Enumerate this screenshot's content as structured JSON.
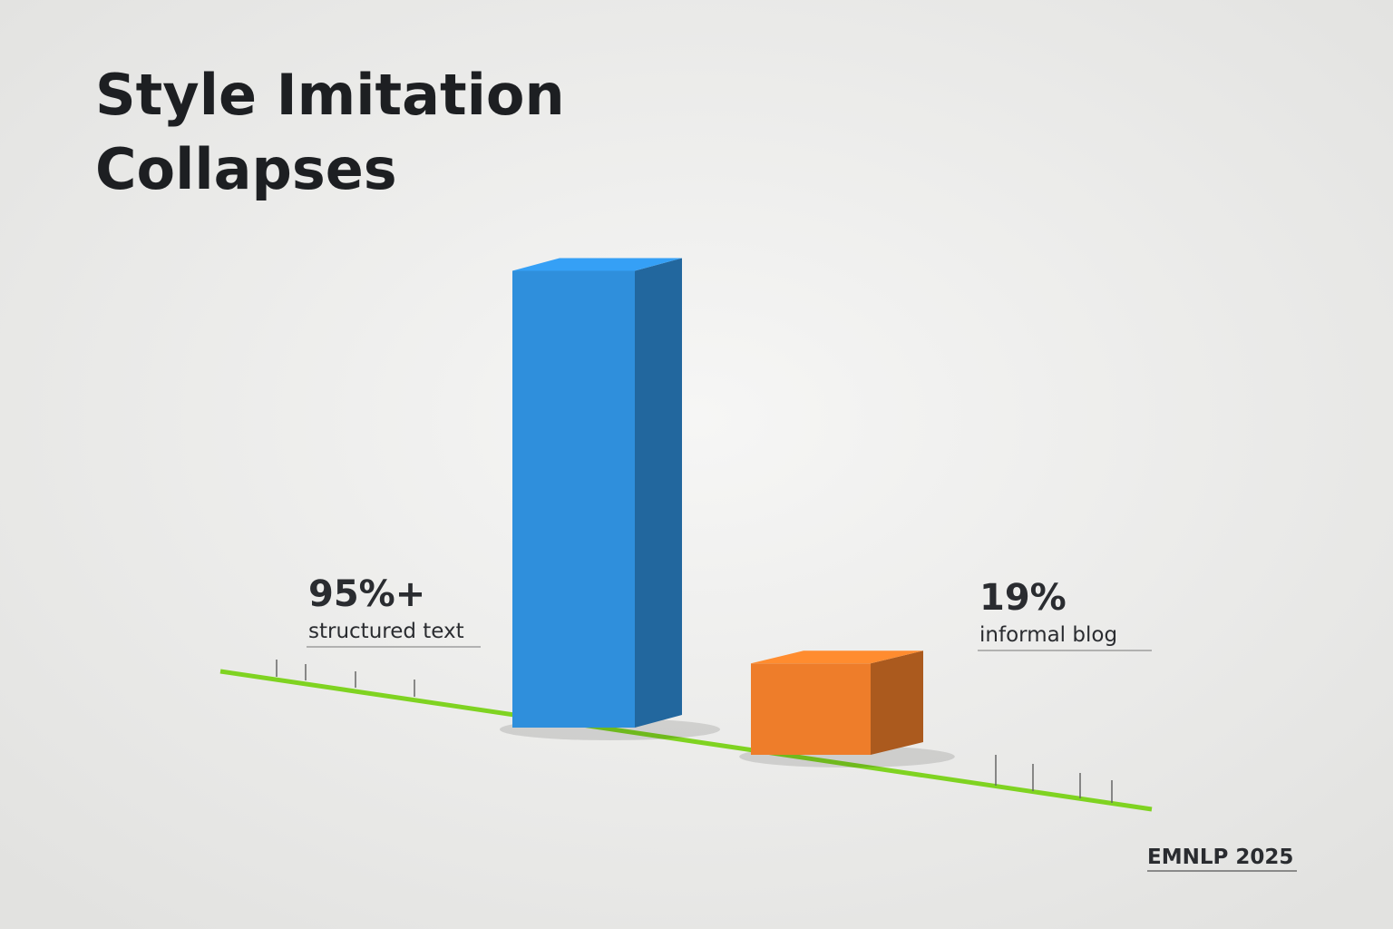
{
  "chart_data": {
    "type": "bar",
    "title": "Style Imitation Collapses",
    "categories": [
      "structured text",
      "informal blog"
    ],
    "values": [
      95,
      19
    ],
    "value_labels": [
      "95%+",
      "19%"
    ],
    "colors": [
      "#2f8fdc",
      "#ee7d2a"
    ],
    "footer": "EMNLP 2025"
  }
}
